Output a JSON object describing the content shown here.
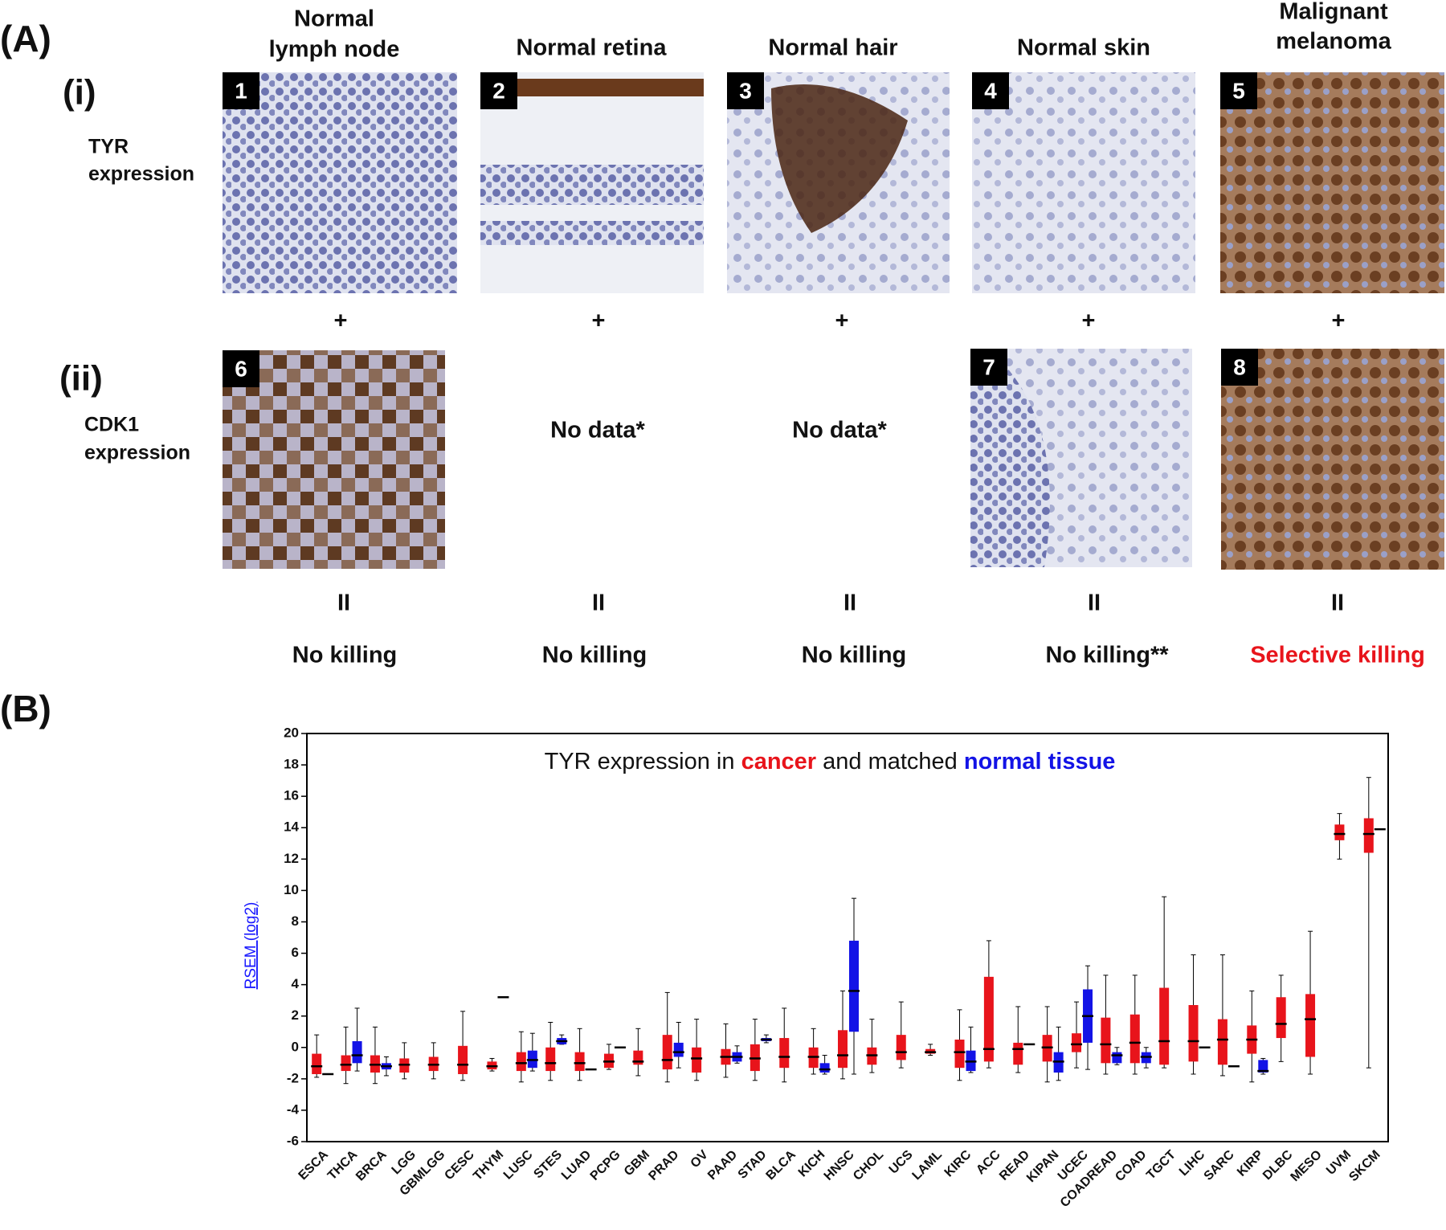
{
  "panel_a": {
    "label": "(A)",
    "plus": "+",
    "equals": "II",
    "rows": [
      {
        "roman": "(i)",
        "label": [
          "TYR",
          "expression"
        ]
      },
      {
        "roman": "(ii)",
        "label": [
          "CDK1",
          "expression"
        ]
      }
    ],
    "columns": [
      {
        "header": [
          "Normal",
          "lymph node"
        ],
        "tyr": "1",
        "cdk1": "6",
        "result": "No killing"
      },
      {
        "header": [
          "Normal retina"
        ],
        "tyr": "2",
        "cdk1_text": "No data*",
        "result": "No killing"
      },
      {
        "header": [
          "Normal hair"
        ],
        "tyr": "3",
        "cdk1_text": "No data*",
        "result": "No killing"
      },
      {
        "header": [
          "Normal skin"
        ],
        "tyr": "4",
        "cdk1": "7",
        "result": "No killing**"
      },
      {
        "header": [
          "Malignant",
          "melanoma"
        ],
        "tyr": "5",
        "cdk1": "8",
        "result": "Selective killing",
        "result_color": "#e8141b"
      }
    ]
  },
  "panel_b_label": "(B)",
  "chart_data": {
    "type": "box",
    "title_parts": [
      "TYR expression in",
      "and matched"
    ],
    "y_label": "RSEM (log2)",
    "ylim": [
      -6,
      20
    ],
    "yticks": [
      -6,
      -4,
      -2,
      0,
      2,
      4,
      6,
      8,
      10,
      12,
      14,
      16,
      18,
      20
    ],
    "grid": false,
    "categories": [
      "ESCA",
      "THCA",
      "BRCA",
      "LGG",
      "GBMLGG",
      "CESC",
      "THYM",
      "LUSC",
      "STES",
      "LUAD",
      "PCPG",
      "GBM",
      "PRAD",
      "OV",
      "PAAD",
      "STAD",
      "BLCA",
      "KICH",
      "HNSC",
      "CHOL",
      "UCS",
      "LAML",
      "KIRC",
      "ACC",
      "READ",
      "KIPAN",
      "UCEC",
      "COADREAD",
      "COAD",
      "TGCT",
      "LIHC",
      "SARC",
      "KIRP",
      "DLBC",
      "MESO",
      "UVM",
      "SKCM"
    ],
    "series": [
      {
        "name": "cancer",
        "color": "#e8141b",
        "values": [
          [
            -1.9,
            -1.7,
            -1.2,
            -0.4,
            0.8
          ],
          [
            -2.3,
            -1.5,
            -1.1,
            -0.5,
            1.3
          ],
          [
            -2.3,
            -1.6,
            -1.1,
            -0.5,
            1.3
          ],
          [
            -2,
            -1.6,
            -1.1,
            -0.7,
            0.3
          ],
          [
            -2,
            -1.5,
            -1.1,
            -0.6,
            0.3
          ],
          [
            -2.1,
            -1.7,
            -1.1,
            0.1,
            2.3
          ],
          [
            -1.5,
            -1.4,
            -1.2,
            -0.9,
            -0.7
          ],
          [
            -2.2,
            -1.5,
            -1,
            -0.3,
            1
          ],
          [
            -2.1,
            -1.5,
            -1,
            0,
            1.6
          ],
          [
            -2.1,
            -1.5,
            -1,
            -0.3,
            1.2
          ],
          [
            -1.4,
            -1.3,
            -0.9,
            -0.4,
            0.2
          ],
          [
            -1.8,
            -1.1,
            -0.9,
            -0.2,
            1.2
          ],
          [
            -2.2,
            -1.4,
            -0.8,
            0.8,
            3.5
          ],
          [
            -2.1,
            -1.6,
            -0.7,
            0,
            1.8
          ],
          [
            -1.9,
            -1.1,
            -0.6,
            -0.1,
            1.5
          ],
          [
            -2.1,
            -1.5,
            -0.7,
            0.2,
            1.8
          ],
          [
            -2.2,
            -1.3,
            -0.6,
            0.6,
            2.5
          ],
          [
            -1.7,
            -1.3,
            -0.6,
            0,
            1.2
          ],
          [
            -2,
            -1.3,
            -0.5,
            1.1,
            3.6
          ],
          [
            -1.6,
            -1.1,
            -0.5,
            0,
            1.8
          ],
          [
            -1.3,
            -0.8,
            -0.3,
            0.8,
            2.9
          ],
          [
            -0.5,
            -0.4,
            -0.3,
            -0.1,
            0.2
          ],
          [
            -2.1,
            -1.3,
            -0.3,
            0.5,
            2.4
          ],
          [
            -1.3,
            -0.9,
            -0.1,
            4.5,
            6.8
          ],
          [
            -1.6,
            -1.1,
            -0.1,
            0.3,
            2.6
          ],
          [
            -2.2,
            -0.9,
            0,
            0.8,
            2.6
          ],
          [
            -1.3,
            -0.3,
            0.2,
            0.9,
            2.9
          ],
          [
            -1.7,
            -1,
            0.2,
            1.9,
            4.6
          ],
          [
            -1.7,
            -1,
            0.3,
            2.1,
            4.6
          ],
          [
            -1.3,
            -1.1,
            0.4,
            3.8,
            9.6
          ],
          [
            -1.7,
            -0.9,
            0.4,
            2.7,
            5.9
          ],
          [
            -1.8,
            -1.1,
            0.5,
            1.8,
            5.9
          ],
          [
            -2.2,
            -0.4,
            0.5,
            1.4,
            3.6
          ],
          [
            -0.9,
            0.6,
            1.5,
            3.2,
            4.6
          ],
          [
            -1.7,
            -0.6,
            1.8,
            3.4,
            7.4
          ],
          [
            12,
            13.2,
            13.6,
            14.2,
            14.9
          ],
          [
            -1.3,
            12.4,
            13.6,
            14.6,
            17.2
          ]
        ]
      },
      {
        "name": "normal tissue",
        "color": "#1313e6",
        "values": [
          [
            -1.7,
            -1.7,
            -1.7,
            -1.7,
            -1.7
          ],
          [
            -1.5,
            -1,
            -0.5,
            0.4,
            2.5
          ],
          [
            -1.8,
            -1.4,
            -1.2,
            -1,
            -0.6
          ],
          null,
          null,
          null,
          [
            3.2,
            3.2,
            3.2,
            3.2,
            3.2
          ],
          [
            -1.5,
            -1.3,
            -0.8,
            -0.2,
            0.9
          ],
          [
            0.2,
            0.2,
            0.4,
            0.6,
            0.8
          ],
          [
            -1.4,
            -1.4,
            -1.4,
            -1.4,
            -1.4
          ],
          [
            0,
            0,
            0,
            0,
            0
          ],
          null,
          [
            -1.3,
            -0.6,
            -0.3,
            0.3,
            1.6
          ],
          null,
          [
            -1,
            -0.9,
            -0.6,
            -0.3,
            0.1
          ],
          [
            0.3,
            0.4,
            0.5,
            0.6,
            0.8
          ],
          null,
          [
            -1.7,
            -1.6,
            -1.4,
            -1,
            -0.5
          ],
          [
            -1.7,
            1,
            3.6,
            6.8,
            9.5
          ],
          null,
          null,
          null,
          [
            -1.6,
            -1.5,
            -0.9,
            -0.2,
            1.3
          ],
          null,
          [
            0.2,
            0.2,
            0.2,
            0.2,
            0.2
          ],
          [
            -2.1,
            -1.6,
            -0.9,
            -0.3,
            1.3
          ],
          [
            -1.4,
            0.3,
            2,
            3.7,
            5.2
          ],
          [
            -1.1,
            -1,
            -0.5,
            -0.3,
            0
          ],
          [
            -1.3,
            -1,
            -0.6,
            -0.3,
            0
          ],
          null,
          [
            0,
            0,
            0,
            0,
            0
          ],
          [
            -1.2,
            -1.2,
            -1.2,
            -1.2,
            -1.2
          ],
          [
            -1.7,
            -1.6,
            -1.5,
            -0.8,
            -0.7
          ],
          null,
          null,
          null,
          [
            13.9,
            13.9,
            13.9,
            13.9,
            13.9
          ]
        ]
      }
    ]
  }
}
